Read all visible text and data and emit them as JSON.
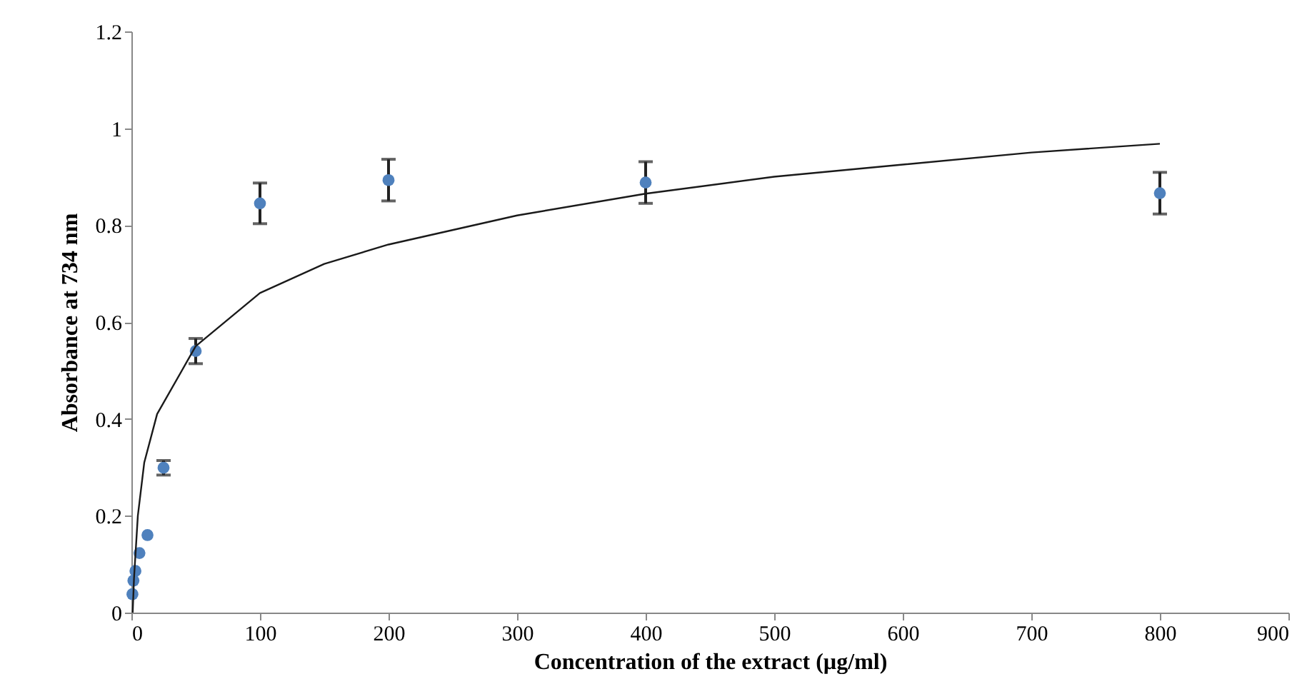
{
  "chart_data": {
    "type": "scatter",
    "xlabel": "Concentration of the extract (µg/ml)",
    "ylabel": "Absorbance at 734 nm",
    "xlim": [
      0,
      900
    ],
    "xticks": [
      0,
      100,
      200,
      300,
      400,
      500,
      600,
      700,
      800,
      900
    ],
    "ylim": [
      0,
      1.2
    ],
    "yticks": [
      0,
      0.2,
      0.4,
      0.6,
      0.8,
      1,
      1.2
    ],
    "grid": false,
    "marker": "circle",
    "series": [
      {
        "color": "#4f81bd",
        "x": [
          0.78,
          1.56,
          3.125,
          6.25,
          12.5,
          25,
          50,
          100,
          200,
          400,
          800
        ],
        "values": [
          0.038,
          0.066,
          0.086,
          0.123,
          0.16,
          0.299,
          0.54,
          0.845,
          0.893,
          0.888,
          0.866
        ],
        "errors": [
          null,
          null,
          null,
          null,
          null,
          0.015,
          0.026,
          0.042,
          0.043,
          0.043,
          0.043
        ]
      },
      {
        "type": "line",
        "color": "#1a1a1a",
        "marker": "none",
        "line_style": "solid",
        "x": [
          1,
          2,
          5,
          10,
          20,
          50,
          100,
          150,
          200,
          300,
          400,
          500,
          600,
          700,
          800
        ],
        "values": [
          0.0,
          0.07,
          0.2,
          0.31,
          0.41,
          0.55,
          0.66,
          0.72,
          0.76,
          0.82,
          0.865,
          0.9,
          0.925,
          0.95,
          0.968
        ]
      }
    ]
  }
}
